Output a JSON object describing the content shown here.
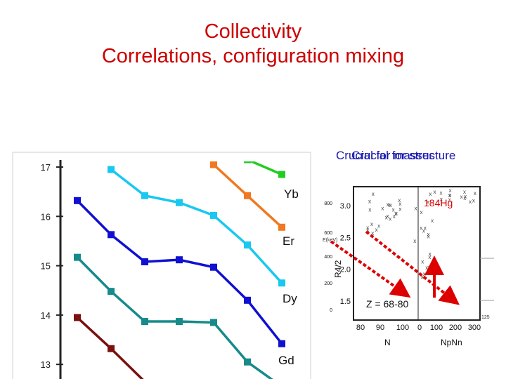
{
  "slide": {
    "title_line1": "Collectivity",
    "title_line2": "Correlations, configuration mixing",
    "overlay_label_1": "Crucial for masses",
    "overlay_label_2": "Crucial for structure"
  },
  "colors": {
    "title": "#cc0000",
    "overlay": "#1a1ab0",
    "arrow": "#dd0000"
  },
  "chart_data": [
    {
      "type": "line",
      "categories": [
        "",
        "",
        "",
        "",
        "",
        "",
        ""
      ],
      "ylim": [
        12.7,
        17.1
      ],
      "yticks": [
        "17",
        "16",
        "15",
        "14",
        "13"
      ],
      "series": [
        {
          "name": "Yb",
          "color": "#22cc22",
          "values": [
            null,
            null,
            null,
            null,
            null,
            17.15,
            16.85
          ]
        },
        {
          "name": "Er",
          "color": "#f07820",
          "values": [
            null,
            null,
            null,
            null,
            17.05,
            16.42,
            15.78
          ]
        },
        {
          "name": "Dy",
          "color": "#18c8f0",
          "values": [
            null,
            16.95,
            16.42,
            16.28,
            16.02,
            15.42,
            14.65
          ]
        },
        {
          "name": "Gd",
          "color": "#1010d0",
          "values": [
            16.32,
            15.63,
            15.08,
            15.12,
            14.97,
            14.3,
            13.42
          ]
        },
        {
          "name": "",
          "color": "#178a8a",
          "values": [
            15.17,
            14.48,
            13.87,
            13.87,
            13.85,
            13.05,
            null
          ]
        },
        {
          "name": "",
          "color": "#7a1010",
          "values": [
            13.95,
            13.32,
            null,
            null,
            null,
            null,
            null
          ]
        }
      ],
      "legend_labels": [
        "Yb",
        "Er",
        "Dy",
        "Gd"
      ]
    },
    {
      "type": "scatter",
      "title": "184Hg",
      "annotation": "Z = 68-80",
      "xlabel_left": "N",
      "xlabel_right": "NpNn",
      "ylabel": "R4/2",
      "left_xticks": [
        "80",
        "90",
        "100"
      ],
      "right_xticks": [
        "0",
        "100",
        "200",
        "300"
      ],
      "yticks": [
        "3.0",
        "2.5",
        "2.0",
        "1.5"
      ],
      "outer_yticks": [
        "800",
        "600",
        "400",
        "200",
        "0"
      ],
      "outer_ylabel": "E(keV)",
      "corner_label": "125",
      "ylim": [
        1.2,
        3.3
      ]
    }
  ]
}
